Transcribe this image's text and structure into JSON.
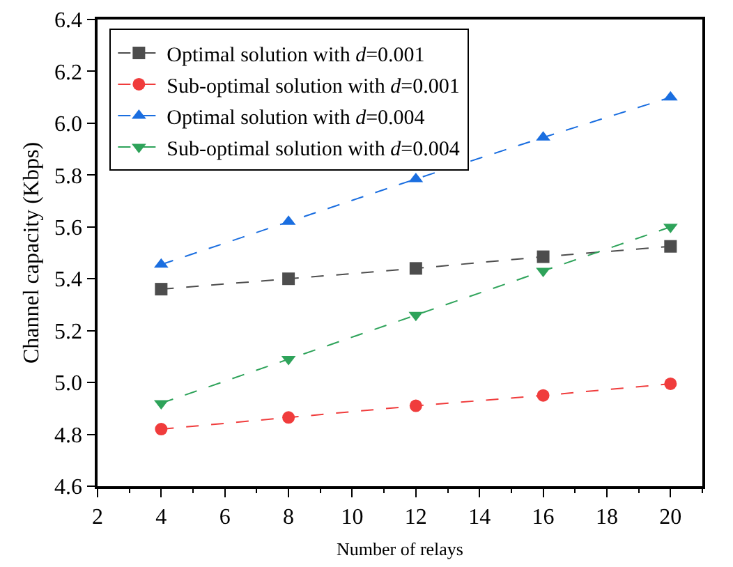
{
  "chart_data": {
    "type": "line",
    "xlabel": "Number of relays",
    "ylabel": "Channel capacity (Kbps)",
    "x": [
      4,
      8,
      12,
      16,
      20
    ],
    "series": [
      {
        "name": "Optimal solution with d=0.001",
        "color": "#4d4d4d",
        "marker": "square",
        "values": [
          5.36,
          5.4,
          5.44,
          5.485,
          5.525
        ]
      },
      {
        "name": "Sub-optimal solution with d=0.001",
        "color": "#f03c3c",
        "marker": "circle",
        "values": [
          4.82,
          4.865,
          4.91,
          4.95,
          4.995
        ]
      },
      {
        "name": "Optimal solution with d=0.004",
        "color": "#1a6ee0",
        "marker": "triangle",
        "values": [
          5.455,
          5.62,
          5.785,
          5.945,
          6.1
        ]
      },
      {
        "name": "Sub-optimal solution with d=0.004",
        "color": "#2ea35a",
        "marker": "triangle-down",
        "values": [
          4.92,
          5.09,
          5.26,
          5.43,
          5.6
        ]
      }
    ],
    "xlim": [
      2,
      21
    ],
    "xticks": [
      2,
      4,
      6,
      8,
      10,
      12,
      14,
      16,
      18,
      20
    ],
    "ylim": [
      4.6,
      6.4
    ],
    "yticks": [
      {
        "value": 4.6,
        "label": "4.6"
      },
      {
        "value": 4.8,
        "label": "4.8"
      },
      {
        "value": 5.0,
        "label": "5.0"
      },
      {
        "value": 5.2,
        "label": "5.2"
      },
      {
        "value": 5.4,
        "label": "5.4"
      },
      {
        "value": 5.6,
        "label": "5.6"
      },
      {
        "value": 5.8,
        "label": "5.8"
      },
      {
        "value": 6.0,
        "label": "6.0"
      },
      {
        "value": 6.2,
        "label": "6.2"
      },
      {
        "value": 6.4,
        "label": "6.4"
      }
    ],
    "grid": false,
    "legend": "top left",
    "line_style": "dashed"
  }
}
